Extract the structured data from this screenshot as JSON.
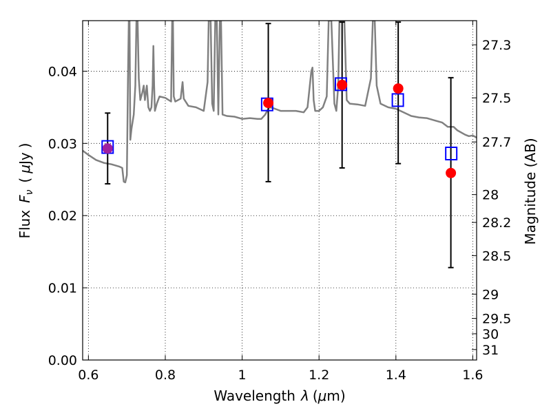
{
  "chart_data": {
    "type": "scatter",
    "xlabel_text": "Wavelength",
    "xlabel_symbol": "λ",
    "xlabel_unit_open": "(",
    "xlabel_unit_mu": "μ",
    "xlabel_unit_rest": "m)",
    "ylabel_text": "Flux",
    "ylabel_symbol": "F",
    "ylabel_symbol_sub": "ν",
    "ylabel_unit_open": "(",
    "ylabel_unit_mu": "μ",
    "ylabel_unit_rest": "Jy",
    "ylabel_unit_close": ")",
    "y2label": "Magnitude (AB)",
    "xlim": [
      0.585,
      1.61
    ],
    "ylim": [
      0.0,
      0.047
    ],
    "grid": true,
    "x_ticks": [
      {
        "value": 0.6,
        "label": "0.6"
      },
      {
        "value": 0.8,
        "label": "0.8"
      },
      {
        "value": 1.0,
        "label": "1"
      },
      {
        "value": 1.2,
        "label": "1.2"
      },
      {
        "value": 1.4,
        "label": "1.4"
      },
      {
        "value": 1.6,
        "label": "1.6"
      }
    ],
    "y_ticks": [
      {
        "value": 0.0,
        "label": "0.00"
      },
      {
        "value": 0.01,
        "label": "0.01"
      },
      {
        "value": 0.02,
        "label": "0.02"
      },
      {
        "value": 0.03,
        "label": "0.03"
      },
      {
        "value": 0.04,
        "label": "0.04"
      }
    ],
    "y2_ticks": [
      {
        "value": 27.3,
        "label": "27.3"
      },
      {
        "value": 27.5,
        "label": "27.5"
      },
      {
        "value": 27.7,
        "label": "27.7"
      },
      {
        "value": 28.0,
        "label": "28"
      },
      {
        "value": 28.2,
        "label": "28.2"
      },
      {
        "value": 28.5,
        "label": "28.5"
      },
      {
        "value": 29.0,
        "label": "29"
      },
      {
        "value": 29.5,
        "label": "29.5"
      },
      {
        "value": 30.0,
        "label": "30"
      },
      {
        "value": 31.0,
        "label": "31"
      }
    ],
    "model_spectrum": {
      "color": "#808080",
      "points": [
        [
          0.585,
          0.029
        ],
        [
          0.6,
          0.0284
        ],
        [
          0.62,
          0.0277
        ],
        [
          0.64,
          0.0273
        ],
        [
          0.66,
          0.0271
        ],
        [
          0.68,
          0.0268
        ],
        [
          0.688,
          0.0266
        ],
        [
          0.692,
          0.0247
        ],
        [
          0.696,
          0.0246
        ],
        [
          0.7,
          0.0256
        ],
        [
          0.703,
          0.039
        ],
        [
          0.705,
          0.047
        ],
        [
          0.707,
          0.047
        ],
        [
          0.709,
          0.0305
        ],
        [
          0.712,
          0.032
        ],
        [
          0.718,
          0.034
        ],
        [
          0.722,
          0.038
        ],
        [
          0.725,
          0.047
        ],
        [
          0.728,
          0.047
        ],
        [
          0.731,
          0.039
        ],
        [
          0.735,
          0.036
        ],
        [
          0.74,
          0.037
        ],
        [
          0.744,
          0.038
        ],
        [
          0.747,
          0.036
        ],
        [
          0.752,
          0.038
        ],
        [
          0.756,
          0.035
        ],
        [
          0.76,
          0.0345
        ],
        [
          0.764,
          0.035
        ],
        [
          0.767,
          0.038
        ],
        [
          0.769,
          0.0435
        ],
        [
          0.771,
          0.038
        ],
        [
          0.773,
          0.0345
        ],
        [
          0.778,
          0.0355
        ],
        [
          0.785,
          0.0365
        ],
        [
          0.8,
          0.0363
        ],
        [
          0.815,
          0.0358
        ],
        [
          0.818,
          0.047
        ],
        [
          0.82,
          0.047
        ],
        [
          0.822,
          0.0365
        ],
        [
          0.826,
          0.0358
        ],
        [
          0.84,
          0.0362
        ],
        [
          0.845,
          0.0385
        ],
        [
          0.848,
          0.0362
        ],
        [
          0.86,
          0.0352
        ],
        [
          0.88,
          0.035
        ],
        [
          0.9,
          0.0345
        ],
        [
          0.91,
          0.0385
        ],
        [
          0.913,
          0.047
        ],
        [
          0.918,
          0.047
        ],
        [
          0.922,
          0.0355
        ],
        [
          0.926,
          0.0345
        ],
        [
          0.93,
          0.047
        ],
        [
          0.934,
          0.047
        ],
        [
          0.938,
          0.034
        ],
        [
          0.942,
          0.047
        ],
        [
          0.945,
          0.047
        ],
        [
          0.949,
          0.034
        ],
        [
          0.96,
          0.0338
        ],
        [
          0.98,
          0.0337
        ],
        [
          1.0,
          0.0334
        ],
        [
          1.02,
          0.0335
        ],
        [
          1.04,
          0.0334
        ],
        [
          1.05,
          0.0334
        ],
        [
          1.06,
          0.034
        ],
        [
          1.07,
          0.035
        ],
        [
          1.08,
          0.0349
        ],
        [
          1.09,
          0.0347
        ],
        [
          1.1,
          0.0345
        ],
        [
          1.12,
          0.0345
        ],
        [
          1.14,
          0.0345
        ],
        [
          1.16,
          0.0343
        ],
        [
          1.17,
          0.035
        ],
        [
          1.18,
          0.04
        ],
        [
          1.183,
          0.0405
        ],
        [
          1.186,
          0.036
        ],
        [
          1.19,
          0.0345
        ],
        [
          1.2,
          0.0345
        ],
        [
          1.21,
          0.035
        ],
        [
          1.22,
          0.0365
        ],
        [
          1.225,
          0.047
        ],
        [
          1.232,
          0.047
        ],
        [
          1.24,
          0.0355
        ],
        [
          1.245,
          0.0345
        ],
        [
          1.25,
          0.038
        ],
        [
          1.253,
          0.047
        ],
        [
          1.26,
          0.047
        ],
        [
          1.266,
          0.047
        ],
        [
          1.272,
          0.036
        ],
        [
          1.28,
          0.0355
        ],
        [
          1.3,
          0.0354
        ],
        [
          1.32,
          0.0352
        ],
        [
          1.335,
          0.039
        ],
        [
          1.34,
          0.047
        ],
        [
          1.345,
          0.047
        ],
        [
          1.35,
          0.038
        ],
        [
          1.36,
          0.0355
        ],
        [
          1.38,
          0.035
        ],
        [
          1.4,
          0.0348
        ],
        [
          1.42,
          0.0343
        ],
        [
          1.44,
          0.0338
        ],
        [
          1.46,
          0.0336
        ],
        [
          1.48,
          0.0335
        ],
        [
          1.5,
          0.0332
        ],
        [
          1.52,
          0.0329
        ],
        [
          1.535,
          0.0323
        ],
        [
          1.55,
          0.0323
        ],
        [
          1.56,
          0.0318
        ],
        [
          1.58,
          0.0312
        ],
        [
          1.59,
          0.031
        ],
        [
          1.6,
          0.0311
        ],
        [
          1.61,
          0.0308
        ]
      ]
    },
    "model_photometry": {
      "color": "#0000ff",
      "points": [
        {
          "x": 0.65,
          "y": 0.0295
        },
        {
          "x": 1.065,
          "y": 0.0354
        },
        {
          "x": 1.257,
          "y": 0.0382
        },
        {
          "x": 1.405,
          "y": 0.036
        },
        {
          "x": 1.544,
          "y": 0.0286
        }
      ]
    },
    "observed": {
      "color": "#ff0000",
      "points": [
        {
          "x": 0.65,
          "y": 0.0293,
          "yerr_low": 0.0244,
          "yerr_high": 0.0342,
          "color": "#a020a0"
        },
        {
          "x": 1.068,
          "y": 0.0356,
          "yerr_low": 0.0247,
          "yerr_high": 0.0466,
          "color": "#ff0000"
        },
        {
          "x": 1.26,
          "y": 0.0381,
          "yerr_low": 0.0266,
          "yerr_high": 0.0468,
          "color": "#ff0000"
        },
        {
          "x": 1.406,
          "y": 0.0376,
          "yerr_low": 0.0272,
          "yerr_high": 0.0468,
          "color": "#ff0000"
        },
        {
          "x": 1.543,
          "y": 0.0259,
          "yerr_low": 0.0128,
          "yerr_high": 0.0391,
          "color": "#ff0000"
        }
      ]
    }
  }
}
